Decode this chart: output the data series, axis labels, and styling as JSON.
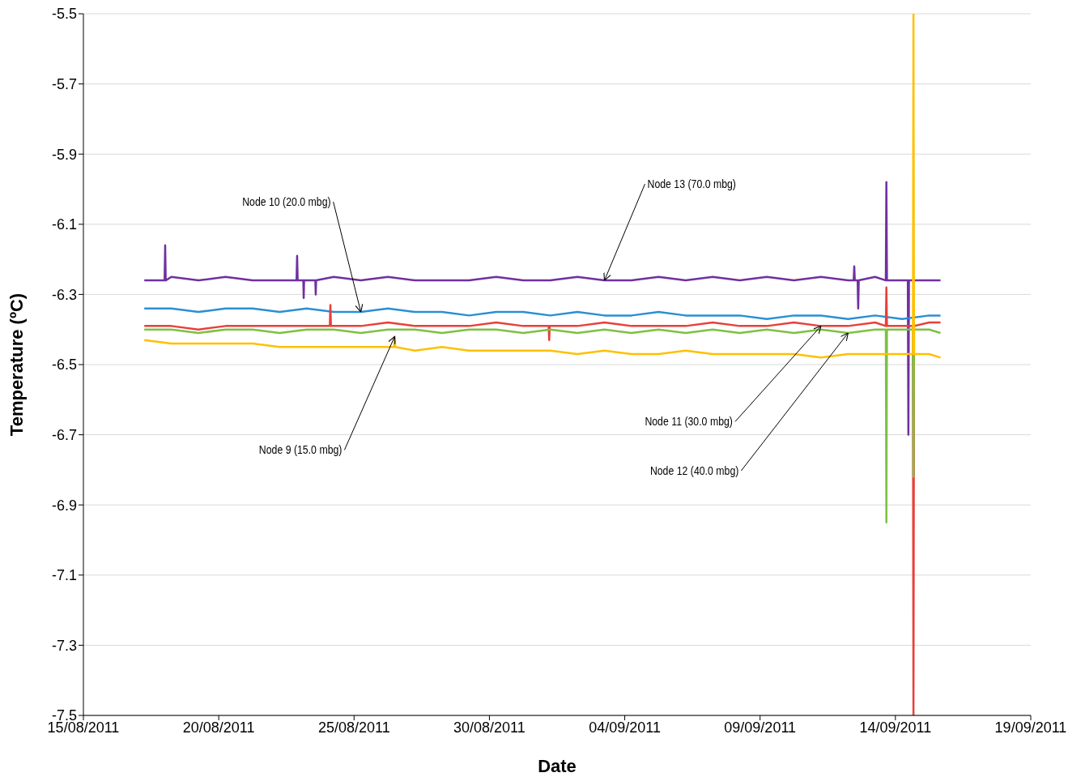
{
  "chart_data": {
    "type": "line",
    "xlabel": "Date",
    "ylabel": "Temperature (ºC)",
    "grid": "y",
    "line_style": "solid",
    "xlim": [
      "2011-08-15",
      "2011-09-19"
    ],
    "xticks": [
      {
        "value": "2011-08-15",
        "label": "15/08/2011"
      },
      {
        "value": "2011-08-20",
        "label": "20/08/2011"
      },
      {
        "value": "2011-08-25",
        "label": "25/08/2011"
      },
      {
        "value": "2011-08-30",
        "label": "30/08/2011"
      },
      {
        "value": "2011-09-04",
        "label": "04/09/2011"
      },
      {
        "value": "2011-09-09",
        "label": "09/09/2011"
      },
      {
        "value": "2011-09-14",
        "label": "14/09/2011"
      },
      {
        "value": "2011-09-19",
        "label": "19/09/2011"
      }
    ],
    "ylim": [
      -7.5,
      -5.5
    ],
    "yticks": [
      -7.5,
      -7.3,
      -7.1,
      -6.9,
      -6.7,
      -6.5,
      -6.3,
      -6.1,
      -5.9,
      -5.7,
      -5.5
    ],
    "series": [
      {
        "color": "#7030a0",
        "x": [
          "2011-08-17T06:00",
          "2011-08-18T00:00",
          "2011-08-18T00:30",
          "2011-08-18T01:00",
          "2011-08-18T06:00",
          "2011-08-19T06:00",
          "2011-08-20T06:00",
          "2011-08-21T06:00",
          "2011-08-22T06:00",
          "2011-08-22T21:00",
          "2011-08-22T21:30",
          "2011-08-22T22:00",
          "2011-08-23T03:00",
          "2011-08-23T03:20",
          "2011-08-23T03:40",
          "2011-08-23T06:00",
          "2011-08-23T13:40",
          "2011-08-23T14:00",
          "2011-08-23T14:20",
          "2011-08-24T06:00",
          "2011-08-25T06:00",
          "2011-08-26T06:00",
          "2011-08-27T06:00",
          "2011-08-28T06:00",
          "2011-08-29T06:00",
          "2011-08-30T06:00",
          "2011-08-31T06:00",
          "2011-09-01T06:00",
          "2011-09-02T06:00",
          "2011-09-03T06:00",
          "2011-09-04T06:00",
          "2011-09-05T06:00",
          "2011-09-06T06:00",
          "2011-09-07T06:00",
          "2011-09-08T06:00",
          "2011-09-09T06:00",
          "2011-09-10T06:00",
          "2011-09-11T06:00",
          "2011-09-12T06:00",
          "2011-09-12T11:00",
          "2011-09-12T11:30",
          "2011-09-12T12:00",
          "2011-09-12T14:30",
          "2011-09-12T15:00",
          "2011-09-12T15:30",
          "2011-09-13T06:00",
          "2011-09-13T15:30",
          "2011-09-13T16:00",
          "2011-09-13T16:30",
          "2011-09-14T06:00",
          "2011-09-14T11:00",
          "2011-09-14T11:30",
          "2011-09-14T12:00",
          "2011-09-15T06:00",
          "2011-09-15T16:00"
        ],
        "values": [
          -6.26,
          -6.26,
          -6.16,
          -6.26,
          -6.25,
          -6.26,
          -6.25,
          -6.26,
          -6.26,
          -6.26,
          -6.19,
          -6.26,
          -6.26,
          -6.31,
          -6.26,
          -6.26,
          -6.26,
          -6.3,
          -6.26,
          -6.25,
          -6.26,
          -6.25,
          -6.26,
          -6.26,
          -6.26,
          -6.25,
          -6.26,
          -6.26,
          -6.25,
          -6.26,
          -6.26,
          -6.25,
          -6.26,
          -6.25,
          -6.26,
          -6.25,
          -6.26,
          -6.25,
          -6.26,
          -6.26,
          -6.22,
          -6.26,
          -6.26,
          -6.34,
          -6.26,
          -6.25,
          -6.26,
          -5.98,
          -6.26,
          -6.26,
          -6.26,
          -6.7,
          -6.26,
          -6.26,
          -6.26
        ]
      },
      {
        "color": "#2a8fd4",
        "x": [
          "2011-08-17T06:00",
          "2011-08-18T06:00",
          "2011-08-19T06:00",
          "2011-08-20T06:00",
          "2011-08-21T06:00",
          "2011-08-22T06:00",
          "2011-08-23T06:00",
          "2011-08-24T06:00",
          "2011-08-25T06:00",
          "2011-08-26T06:00",
          "2011-08-27T06:00",
          "2011-08-28T06:00",
          "2011-08-29T06:00",
          "2011-08-30T06:00",
          "2011-08-31T06:00",
          "2011-09-01T06:00",
          "2011-09-02T06:00",
          "2011-09-03T06:00",
          "2011-09-04T06:00",
          "2011-09-05T06:00",
          "2011-09-06T06:00",
          "2011-09-07T06:00",
          "2011-09-08T06:00",
          "2011-09-09T06:00",
          "2011-09-10T06:00",
          "2011-09-11T06:00",
          "2011-09-12T06:00",
          "2011-09-13T06:00",
          "2011-09-14T06:00",
          "2011-09-15T06:00",
          "2011-09-15T16:00"
        ],
        "values": [
          -6.34,
          -6.34,
          -6.35,
          -6.34,
          -6.34,
          -6.35,
          -6.34,
          -6.35,
          -6.35,
          -6.34,
          -6.35,
          -6.35,
          -6.36,
          -6.35,
          -6.35,
          -6.36,
          -6.35,
          -6.36,
          -6.36,
          -6.35,
          -6.36,
          -6.36,
          -6.36,
          -6.37,
          -6.36,
          -6.36,
          -6.37,
          -6.36,
          -6.37,
          -6.36,
          -6.36
        ]
      },
      {
        "color": "#e8403a",
        "x": [
          "2011-08-17T06:00",
          "2011-08-18T06:00",
          "2011-08-19T06:00",
          "2011-08-20T06:00",
          "2011-08-21T06:00",
          "2011-08-22T06:00",
          "2011-08-23T06:00",
          "2011-08-24T02:30",
          "2011-08-24T03:00",
          "2011-08-24T03:30",
          "2011-08-24T06:00",
          "2011-08-25T06:00",
          "2011-08-26T06:00",
          "2011-08-27T06:00",
          "2011-08-28T06:00",
          "2011-08-29T06:00",
          "2011-08-30T06:00",
          "2011-08-31T06:00",
          "2011-09-01T04:30",
          "2011-09-01T05:00",
          "2011-09-01T05:30",
          "2011-09-01T06:00",
          "2011-09-02T06:00",
          "2011-09-03T06:00",
          "2011-09-04T06:00",
          "2011-09-05T06:00",
          "2011-09-06T06:00",
          "2011-09-07T06:00",
          "2011-09-08T06:00",
          "2011-09-09T06:00",
          "2011-09-10T06:00",
          "2011-09-11T06:00",
          "2011-09-12T06:00",
          "2011-09-13T06:00",
          "2011-09-13T15:30",
          "2011-09-13T16:00",
          "2011-09-13T16:30",
          "2011-09-14T06:00",
          "2011-09-14T15:30",
          "2011-09-14T16:00",
          "2011-09-14T16:30",
          "2011-09-15T06:00",
          "2011-09-15T16:00"
        ],
        "values": [
          -6.39,
          -6.39,
          -6.4,
          -6.39,
          -6.39,
          -6.39,
          -6.39,
          -6.39,
          -6.33,
          -6.39,
          -6.39,
          -6.39,
          -6.38,
          -6.39,
          -6.39,
          -6.39,
          -6.38,
          -6.39,
          -6.39,
          -6.43,
          -6.39,
          -6.39,
          -6.39,
          -6.38,
          -6.39,
          -6.39,
          -6.39,
          -6.38,
          -6.39,
          -6.39,
          -6.38,
          -6.39,
          -6.39,
          -6.38,
          -6.39,
          -6.28,
          -6.39,
          -6.39,
          -6.39,
          -7.5,
          -6.39,
          -6.38,
          -6.38
        ]
      },
      {
        "color": "#7dc142",
        "x": [
          "2011-08-17T06:00",
          "2011-08-18T06:00",
          "2011-08-19T06:00",
          "2011-08-20T06:00",
          "2011-08-21T06:00",
          "2011-08-22T06:00",
          "2011-08-23T06:00",
          "2011-08-24T06:00",
          "2011-08-25T06:00",
          "2011-08-26T06:00",
          "2011-08-27T06:00",
          "2011-08-28T06:00",
          "2011-08-29T06:00",
          "2011-08-30T06:00",
          "2011-08-31T06:00",
          "2011-09-01T06:00",
          "2011-09-02T06:00",
          "2011-09-03T06:00",
          "2011-09-04T06:00",
          "2011-09-05T06:00",
          "2011-09-06T06:00",
          "2011-09-07T06:00",
          "2011-09-08T06:00",
          "2011-09-09T06:00",
          "2011-09-10T06:00",
          "2011-09-11T06:00",
          "2011-09-12T06:00",
          "2011-09-13T06:00",
          "2011-09-13T15:30",
          "2011-09-13T16:00",
          "2011-09-13T16:30",
          "2011-09-14T06:00",
          "2011-09-14T15:30",
          "2011-09-14T16:00",
          "2011-09-14T16:30",
          "2011-09-15T06:00",
          "2011-09-15T16:00"
        ],
        "values": [
          -6.4,
          -6.4,
          -6.41,
          -6.4,
          -6.4,
          -6.41,
          -6.4,
          -6.4,
          -6.41,
          -6.4,
          -6.4,
          -6.41,
          -6.4,
          -6.4,
          -6.41,
          -6.4,
          -6.41,
          -6.4,
          -6.41,
          -6.4,
          -6.41,
          -6.4,
          -6.41,
          -6.4,
          -6.41,
          -6.4,
          -6.41,
          -6.4,
          -6.4,
          -6.95,
          -6.4,
          -6.4,
          -6.4,
          -6.82,
          -6.4,
          -6.4,
          -6.41
        ]
      },
      {
        "color": "#ffc000",
        "x": [
          "2011-08-17T06:00",
          "2011-08-18T06:00",
          "2011-08-19T06:00",
          "2011-08-20T06:00",
          "2011-08-21T06:00",
          "2011-08-22T06:00",
          "2011-08-23T06:00",
          "2011-08-24T06:00",
          "2011-08-25T06:00",
          "2011-08-26T06:00",
          "2011-08-26T11:30",
          "2011-08-26T12:00",
          "2011-08-26T12:30",
          "2011-08-27T06:00",
          "2011-08-28T06:00",
          "2011-08-29T06:00",
          "2011-08-30T06:00",
          "2011-08-31T06:00",
          "2011-09-01T06:00",
          "2011-09-02T06:00",
          "2011-09-03T06:00",
          "2011-09-04T06:00",
          "2011-09-05T06:00",
          "2011-09-06T06:00",
          "2011-09-07T06:00",
          "2011-09-08T06:00",
          "2011-09-09T06:00",
          "2011-09-10T06:00",
          "2011-09-11T06:00",
          "2011-09-12T06:00",
          "2011-09-13T06:00",
          "2011-09-14T06:00",
          "2011-09-14T15:30",
          "2011-09-14T16:00",
          "2011-09-14T16:30",
          "2011-09-15T06:00",
          "2011-09-15T16:00"
        ],
        "values": [
          -6.43,
          -6.44,
          -6.44,
          -6.44,
          -6.44,
          -6.45,
          -6.45,
          -6.45,
          -6.45,
          -6.45,
          -6.45,
          -6.42,
          -6.45,
          -6.46,
          -6.45,
          -6.46,
          -6.46,
          -6.46,
          -6.46,
          -6.47,
          -6.46,
          -6.47,
          -6.47,
          -6.46,
          -6.47,
          -6.47,
          -6.47,
          -6.47,
          -6.48,
          -6.47,
          -6.47,
          -6.47,
          -6.47,
          -5.5,
          -6.47,
          -6.47,
          -6.48
        ]
      }
    ],
    "annotations": [
      {
        "text": "Node 10 (20.0 mbg)",
        "x": "2011-08-25T06:00",
        "y": -6.35
      },
      {
        "text": "Node 13 (70.0 mbg)",
        "x": "2011-09-03T06:00",
        "y": -6.26
      },
      {
        "text": "Node 9 (15.0 mbg)",
        "x": "2011-08-26T12:00",
        "y": -6.42
      },
      {
        "text": "Node 11 (30.0 mbg)",
        "x": "2011-09-11T06:00",
        "y": -6.39
      },
      {
        "text": "Node 12 (40.0 mbg)",
        "x": "2011-09-12T06:00",
        "y": -6.41
      }
    ]
  }
}
